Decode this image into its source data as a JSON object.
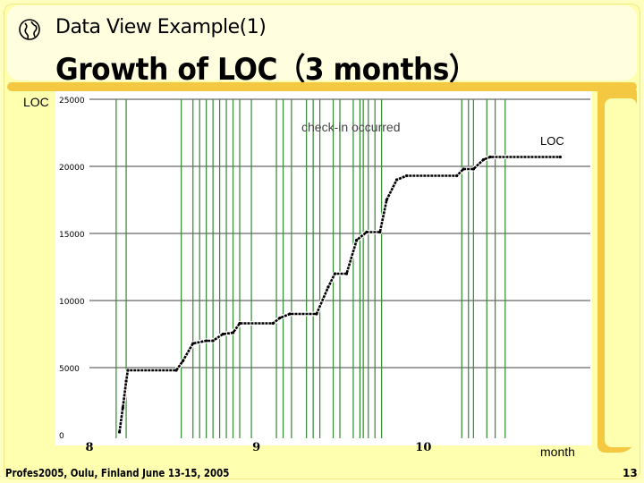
{
  "slide": {
    "subtitle": "Data View Example(1)",
    "title": "Growth of LOC（3 months）",
    "footer": "Profes2005, Oulu, Finland June 13-15, 2005",
    "page_number": "13",
    "globe_icon": "globe-icon"
  },
  "colors": {
    "background": "#ffffc0",
    "accent": "#f5c842",
    "checkin_line": "#2e8b2e",
    "loc_line": "#000000",
    "grid": "#000000"
  },
  "chart_data": {
    "type": "line",
    "title": "",
    "ylabel": "LOC",
    "xlabel": "month",
    "ylim": [
      0,
      25000
    ],
    "xlim": [
      8,
      11
    ],
    "yticks": [
      0,
      5000,
      10000,
      15000,
      20000,
      25000
    ],
    "xticks": [
      {
        "value": 8,
        "label": "8"
      },
      {
        "value": 9,
        "label": "9"
      },
      {
        "value": 10,
        "label": "10"
      }
    ],
    "annotations": [
      {
        "text": "check-in occurred"
      },
      {
        "text": "LOC"
      }
    ],
    "checkins": [
      8.16,
      8.22,
      8.55,
      8.62,
      8.66,
      8.7,
      8.74,
      8.78,
      8.82,
      8.86,
      8.9,
      8.97,
      9.12,
      9.16,
      9.21,
      9.3,
      9.34,
      9.38,
      9.46,
      9.5,
      9.58,
      9.62,
      9.64,
      9.67,
      9.71,
      9.75,
      10.23,
      10.27,
      10.3,
      10.38,
      10.43,
      10.49
    ],
    "series": [
      {
        "values": [
          [
            8.18,
            200
          ],
          [
            8.2,
            2000
          ],
          [
            8.22,
            4000
          ],
          [
            8.23,
            4800
          ],
          [
            8.52,
            4800
          ],
          [
            8.56,
            5500
          ],
          [
            8.62,
            6800
          ],
          [
            8.7,
            7000
          ],
          [
            8.74,
            7000
          ],
          [
            8.8,
            7500
          ],
          [
            8.86,
            7600
          ],
          [
            8.9,
            8300
          ],
          [
            9.1,
            8300
          ],
          [
            9.14,
            8700
          ],
          [
            9.2,
            9000
          ],
          [
            9.36,
            9000
          ],
          [
            9.43,
            11000
          ],
          [
            9.47,
            12000
          ],
          [
            9.54,
            12000
          ],
          [
            9.6,
            14500
          ],
          [
            9.66,
            15100
          ],
          [
            9.74,
            15100
          ],
          [
            9.78,
            17500
          ],
          [
            9.84,
            19000
          ],
          [
            9.9,
            19300
          ],
          [
            10.2,
            19300
          ],
          [
            10.24,
            19800
          ],
          [
            10.3,
            19800
          ],
          [
            10.36,
            20500
          ],
          [
            10.4,
            20700
          ],
          [
            10.82,
            20700
          ]
        ]
      }
    ]
  }
}
